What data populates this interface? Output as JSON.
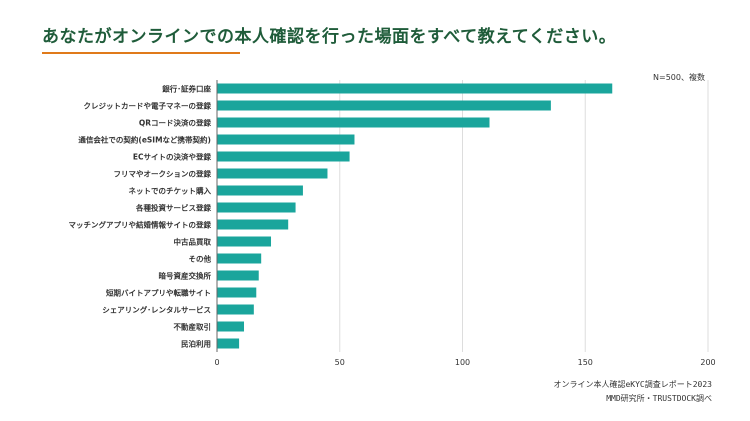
{
  "header": {
    "title": "あなたがオンラインでの本人確認を行った場面をすべて教えてください。",
    "accent_color": "#e07a1a",
    "title_color": "#1f5c3a"
  },
  "note": "N=500、複数",
  "source": {
    "line1": "オンライン本人確認eKYC調査レポート2023",
    "line2": "MMD研究所・TRUSTDOCK調べ"
  },
  "chart_data": {
    "type": "bar",
    "orientation": "horizontal",
    "bar_color": "#1aa59c",
    "grid": true,
    "xlim": [
      0,
      200
    ],
    "xticks": [
      0,
      50,
      100,
      150,
      200
    ],
    "categories": [
      "銀行･証券口座",
      "クレジットカードや電子マネーの登録",
      "QRコード決済の登録",
      "通信会社での契約(eSIMなど携帯契約)",
      "ECサイトの決済や登録",
      "フリマやオークションの登録",
      "ネットでのチケット購入",
      "各種投資サービス登録",
      "マッチングアプリや結婚情報サイトの登録",
      "中古品買取",
      "その他",
      "暗号資産交換所",
      "短期バイトアプリや転職サイト",
      "シェアリング･レンタルサービス",
      "不動産取引",
      "民泊利用"
    ],
    "values": [
      161,
      136,
      111,
      56,
      54,
      45,
      35,
      32,
      29,
      22,
      18,
      17,
      16,
      15,
      11,
      9
    ]
  }
}
